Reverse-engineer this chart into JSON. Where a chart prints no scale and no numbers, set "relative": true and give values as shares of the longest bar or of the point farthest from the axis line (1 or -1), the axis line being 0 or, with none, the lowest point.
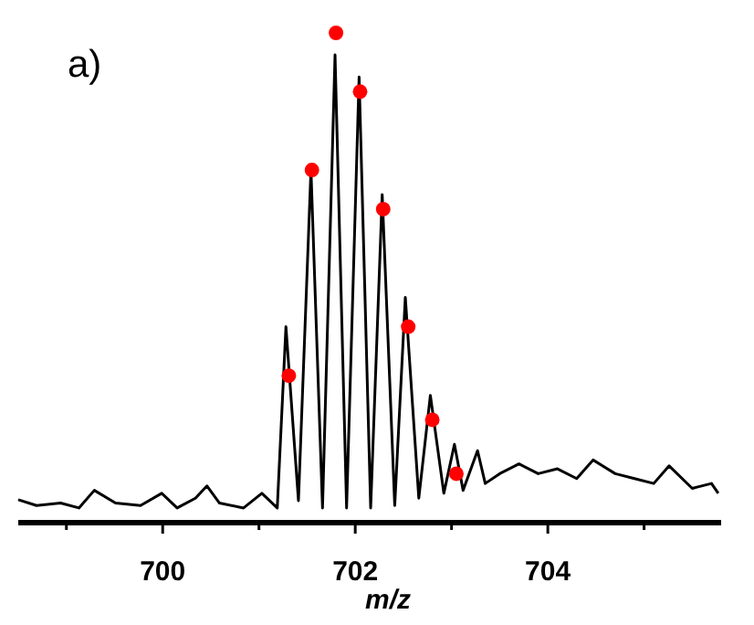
{
  "chart_data": {
    "type": "line",
    "relative": true,
    "xlabel": "m/z",
    "annotations": [
      "a)"
    ],
    "xlim": [
      698.5,
      705.8
    ],
    "xticks": [
      {
        "value": 699,
        "label": null
      },
      700,
      {
        "value": 701,
        "label": null
      },
      702,
      {
        "value": 703,
        "label": null
      },
      704,
      {
        "value": 705,
        "label": null
      }
    ],
    "grid": false,
    "series": [
      {
        "color": "#000000",
        "line_style": "solid",
        "marker": "none",
        "x": [
          698.5,
          698.69,
          698.94,
          699.13,
          699.29,
          699.51,
          699.77,
          699.99,
          700.15,
          700.34,
          700.46,
          700.59,
          700.84,
          701.03,
          701.19,
          701.28,
          701.41,
          701.54,
          701.66,
          701.79,
          701.91,
          702.04,
          702.16,
          702.28,
          702.41,
          702.52,
          702.66,
          702.78,
          702.92,
          703.03,
          703.12,
          703.27,
          703.35,
          703.5,
          703.7,
          703.9,
          704.1,
          704.3,
          704.47,
          704.7,
          704.9,
          705.1,
          705.26,
          705.5,
          705.7,
          705.77
        ],
        "values": [
          0.047,
          0.035,
          0.04,
          0.03,
          0.066,
          0.04,
          0.035,
          0.06,
          0.03,
          0.05,
          0.075,
          0.04,
          0.03,
          0.06,
          0.03,
          0.4,
          0.045,
          0.72,
          0.03,
          0.955,
          0.03,
          0.91,
          0.03,
          0.67,
          0.035,
          0.46,
          0.05,
          0.26,
          0.06,
          0.16,
          0.066,
          0.147,
          0.08,
          0.1,
          0.12,
          0.1,
          0.11,
          0.09,
          0.128,
          0.1,
          0.09,
          0.08,
          0.116,
          0.07,
          0.08,
          0.06
        ]
      },
      {
        "type": "scatter",
        "color": "#ff0000",
        "marker": "circle",
        "x": [
          701.31,
          701.55,
          701.8,
          702.05,
          702.29,
          702.55,
          702.8,
          703.05
        ],
        "values": [
          0.3,
          0.72,
          1.0,
          0.88,
          0.64,
          0.4,
          0.21,
          0.1
        ]
      }
    ]
  }
}
